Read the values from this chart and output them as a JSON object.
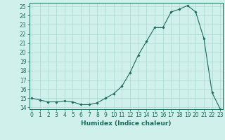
{
  "x": [
    0,
    1,
    2,
    3,
    4,
    5,
    6,
    7,
    8,
    9,
    10,
    11,
    12,
    13,
    14,
    15,
    16,
    17,
    18,
    19,
    20,
    21,
    22,
    23
  ],
  "y": [
    15.0,
    14.8,
    14.6,
    14.6,
    14.7,
    14.6,
    14.3,
    14.3,
    14.5,
    15.0,
    15.5,
    16.3,
    17.8,
    19.7,
    21.2,
    22.7,
    22.7,
    24.4,
    24.7,
    25.1,
    24.4,
    21.5,
    15.6,
    13.8
  ],
  "xlabel": "Humidex (Indice chaleur)",
  "ylim_min": 13.8,
  "ylim_max": 25.4,
  "xlim_min": -0.3,
  "xlim_max": 23.3,
  "yticks": [
    14,
    15,
    16,
    17,
    18,
    19,
    20,
    21,
    22,
    23,
    24,
    25
  ],
  "xticks": [
    0,
    1,
    2,
    3,
    4,
    5,
    6,
    7,
    8,
    9,
    10,
    11,
    12,
    13,
    14,
    15,
    16,
    17,
    18,
    19,
    20,
    21,
    22,
    23
  ],
  "line_color": "#1a6b5a",
  "marker": "D",
  "marker_size": 1.8,
  "bg_color": "#cff0eb",
  "grid_color": "#aad8d0",
  "label_fontsize": 6.5,
  "tick_fontsize": 5.5
}
